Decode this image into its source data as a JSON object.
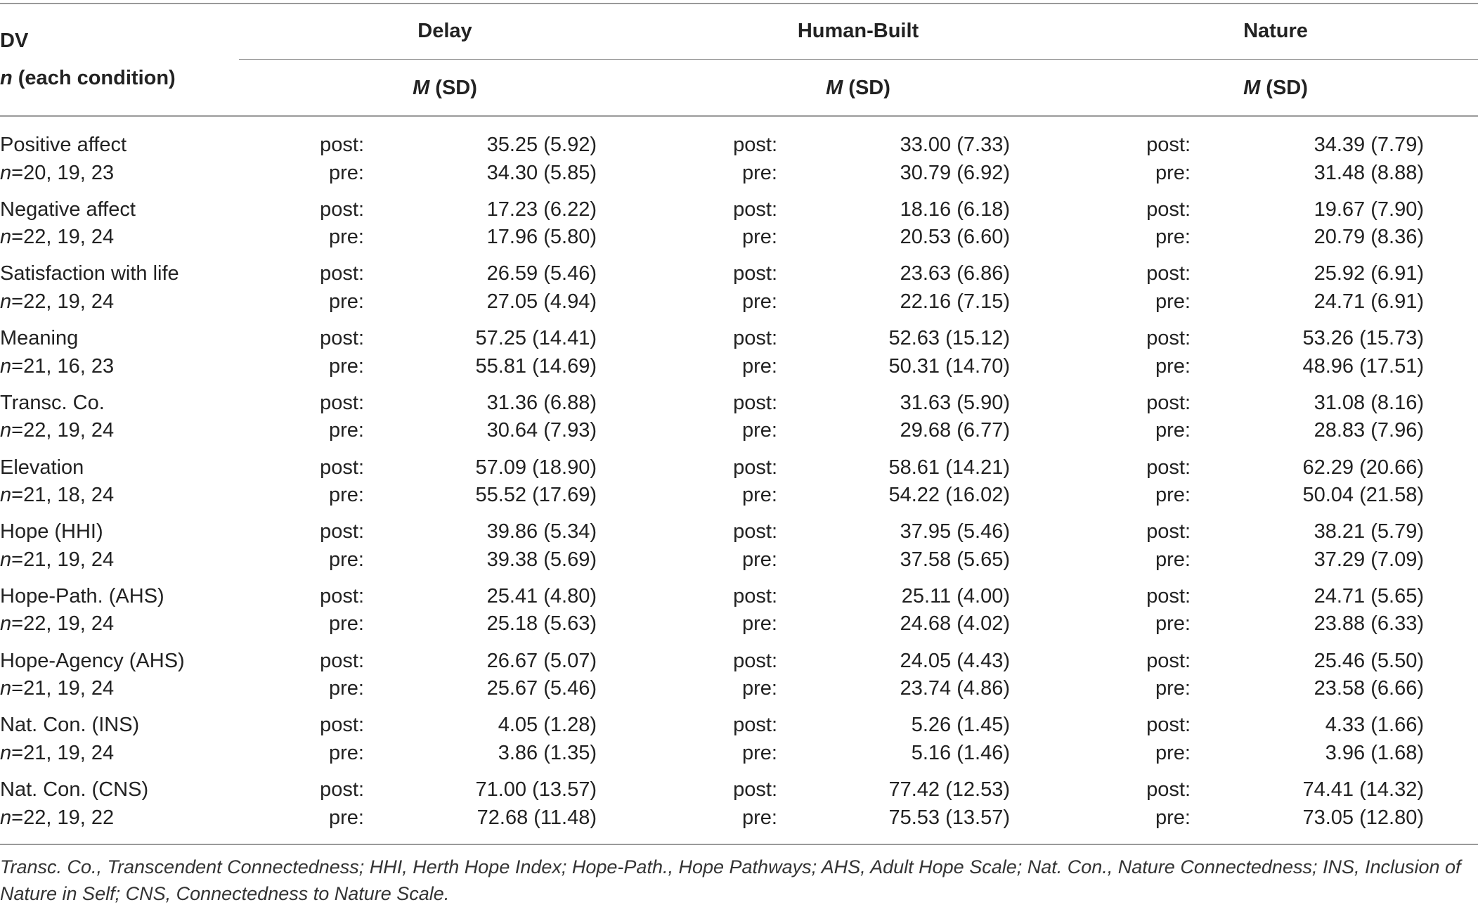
{
  "header": {
    "dv": "DV",
    "n_prefix": "n",
    "n_suffix": " (each condition)",
    "conditions": [
      "Delay",
      "Human-Built",
      "Nature"
    ],
    "stat_m": "M",
    "stat_sd": " (SD)"
  },
  "time_labels": {
    "post": "post:",
    "pre": "pre:"
  },
  "rows": [
    {
      "name": "Positive affect",
      "n": "=20, 19, 23",
      "post": [
        "35.25 (5.92)",
        "33.00 (7.33)",
        "34.39 (7.79)"
      ],
      "pre": [
        "34.30 (5.85)",
        "30.79 (6.92)",
        "31.48 (8.88)"
      ]
    },
    {
      "name": "Negative affect",
      "n": "=22, 19, 24",
      "post": [
        "17.23 (6.22)",
        "18.16 (6.18)",
        "19.67 (7.90)"
      ],
      "pre": [
        "17.96 (5.80)",
        "20.53 (6.60)",
        "20.79 (8.36)"
      ]
    },
    {
      "name": "Satisfaction with life",
      "n": "=22, 19, 24",
      "post": [
        "26.59 (5.46)",
        "23.63 (6.86)",
        "25.92 (6.91)"
      ],
      "pre": [
        "27.05 (4.94)",
        "22.16 (7.15)",
        "24.71 (6.91)"
      ]
    },
    {
      "name": "Meaning",
      "n": "=21, 16, 23",
      "post": [
        "57.25 (14.41)",
        "52.63 (15.12)",
        "53.26 (15.73)"
      ],
      "pre": [
        "55.81 (14.69)",
        "50.31 (14.70)",
        "48.96 (17.51)"
      ]
    },
    {
      "name": "Transc. Co.",
      "n": "=22, 19, 24",
      "post": [
        "31.36 (6.88)",
        "31.63 (5.90)",
        "31.08 (8.16)"
      ],
      "pre": [
        "30.64 (7.93)",
        "29.68 (6.77)",
        "28.83 (7.96)"
      ]
    },
    {
      "name": "Elevation",
      "n": "=21, 18, 24",
      "post": [
        "57.09 (18.90)",
        "58.61 (14.21)",
        "62.29 (20.66)"
      ],
      "pre": [
        "55.52 (17.69)",
        "54.22 (16.02)",
        "50.04 (21.58)"
      ]
    },
    {
      "name": "Hope (HHI)",
      "n": "=21, 19, 24",
      "post": [
        "39.86 (5.34)",
        "37.95 (5.46)",
        "38.21 (5.79)"
      ],
      "pre": [
        "39.38 (5.69)",
        "37.58 (5.65)",
        "37.29 (7.09)"
      ]
    },
    {
      "name": "Hope-Path. (AHS)",
      "n": "=22, 19, 24",
      "post": [
        "25.41 (4.80)",
        "25.11 (4.00)",
        "24.71 (5.65)"
      ],
      "pre": [
        "25.18 (5.63)",
        "24.68 (4.02)",
        "23.88 (6.33)"
      ]
    },
    {
      "name": "Hope-Agency (AHS)",
      "n": "=21, 19, 24",
      "post": [
        "26.67 (5.07)",
        "24.05 (4.43)",
        "25.46 (5.50)"
      ],
      "pre": [
        "25.67 (5.46)",
        "23.74 (4.86)",
        "23.58 (6.66)"
      ]
    },
    {
      "name": "Nat. Con. (INS)",
      "n": "=21, 19, 24",
      "post": [
        "4.05 (1.28)",
        "5.26 (1.45)",
        "4.33 (1.66)"
      ],
      "pre": [
        "3.86 (1.35)",
        "5.16 (1.46)",
        "3.96 (1.68)"
      ]
    },
    {
      "name": "Nat. Con. (CNS)",
      "n": "=22, 19, 22",
      "post": [
        "71.00 (13.57)",
        "77.42 (12.53)",
        "74.41 (14.32)"
      ],
      "pre": [
        "72.68 (11.48)",
        "75.53 (13.57)",
        "73.05 (12.80)"
      ]
    }
  ],
  "footnote": "Transc. Co., Transcendent Connectedness; HHI, Herth Hope Index; Hope-Path., Hope Pathways; AHS, Adult Hope Scale; Nat. Con., Nature Connectedness; INS, Inclusion of Nature in Self; CNS, Connectedness to Nature Scale."
}
